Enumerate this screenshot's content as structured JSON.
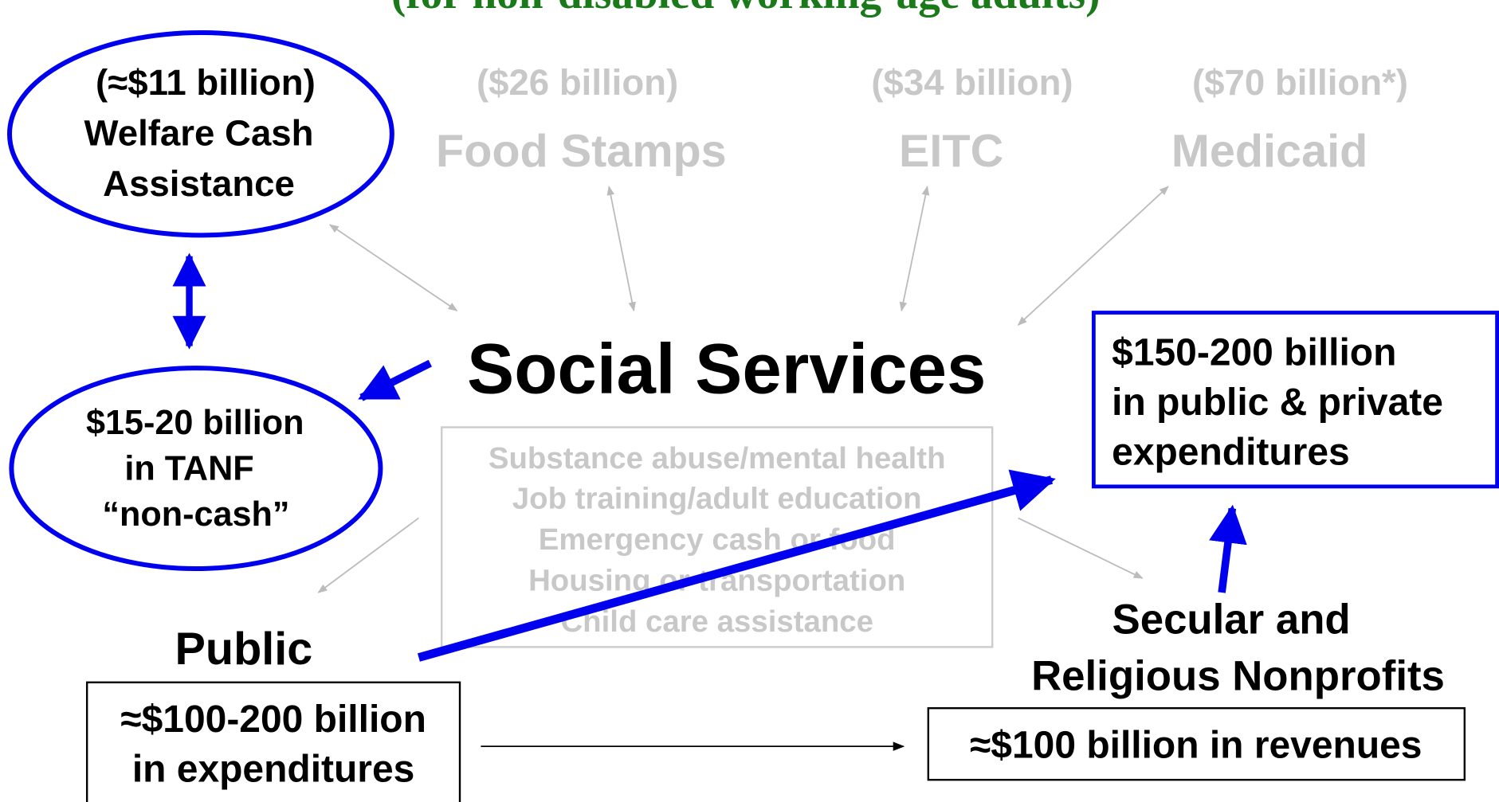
{
  "title": "(for non-disabled working-age adults)",
  "welfare": {
    "lines": [
      "(≈$11 billion)",
      "Welfare Cash",
      "Assistance"
    ]
  },
  "programs": [
    {
      "amount": "($26 billion)",
      "label": "Food Stamps"
    },
    {
      "amount": "($34 billion)",
      "label": "EITC"
    },
    {
      "amount": "($70 billion*)",
      "label": "Medicaid"
    }
  ],
  "tanf": {
    "lines": [
      "$15-20 billion",
      "in TANF",
      "“non-cash”"
    ]
  },
  "center": "Social Services",
  "services": [
    "Substance abuse/mental health",
    "Job training/adult education",
    "Emergency cash or food",
    "Housing or transportation",
    "Child care assistance"
  ],
  "total": {
    "lines": [
      "$150-200 billion",
      "in public & private",
      "expenditures"
    ]
  },
  "public": {
    "label": "Public",
    "lines": [
      "≈$100-200 billion",
      "in expenditures"
    ]
  },
  "nonprofits": {
    "lines": [
      "Secular and",
      "Religious Nonprofits"
    ],
    "box": "≈$100 billion in revenues"
  }
}
